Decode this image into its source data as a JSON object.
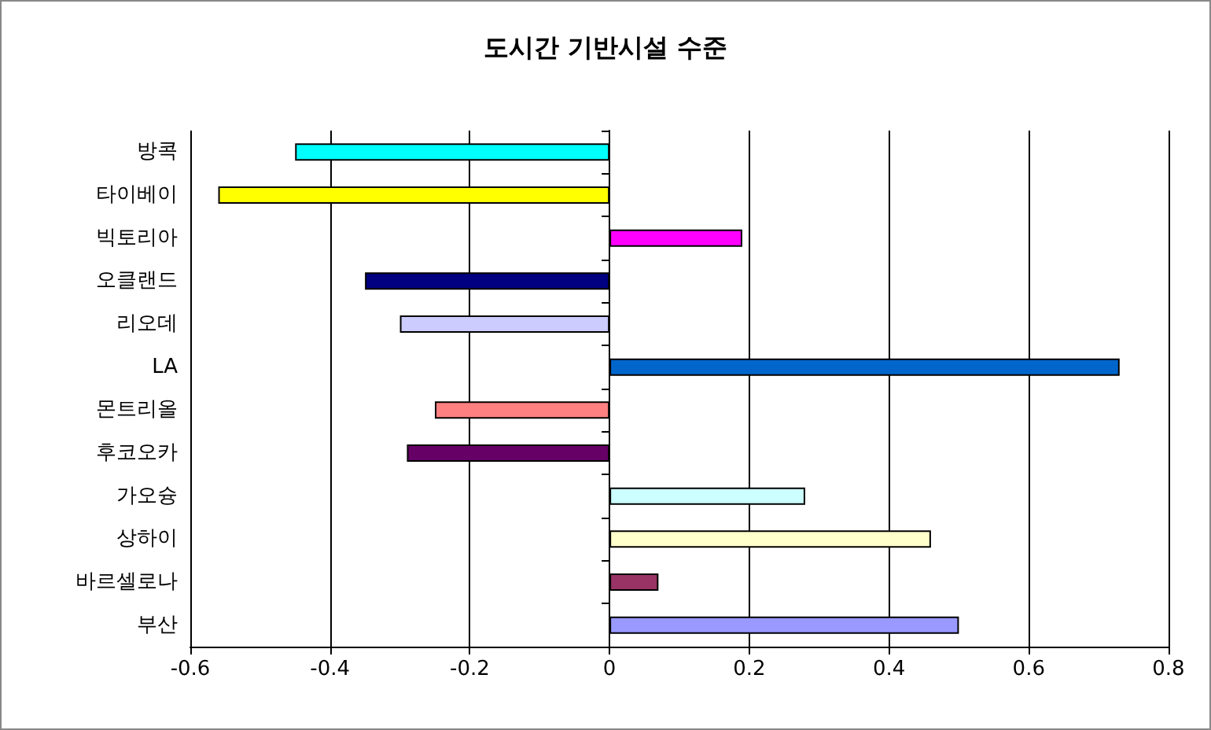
{
  "chart_data": {
    "type": "bar",
    "orientation": "horizontal",
    "title": "도시간 기반시설 수준",
    "categories": [
      "방콕",
      "타이베이",
      "빅토리아",
      "오클랜드",
      "리오데",
      "LA",
      "몬트리올",
      "후코오카",
      "가오슝",
      "상하이",
      "바르셀로나",
      "부산"
    ],
    "values": [
      -0.45,
      -0.56,
      0.19,
      -0.35,
      -0.3,
      0.73,
      -0.25,
      -0.29,
      0.28,
      0.46,
      0.07,
      0.5
    ],
    "colors": [
      "#00ffff",
      "#ffff00",
      "#ff00ff",
      "#000080",
      "#ccccff",
      "#0066cc",
      "#ff8080",
      "#660066",
      "#ccffff",
      "#ffffcc",
      "#993366",
      "#9999ff"
    ],
    "xlim": [
      -0.6,
      0.8
    ],
    "xticks": [
      -0.6,
      -0.4,
      -0.2,
      0,
      0.2,
      0.4,
      0.6,
      0.8
    ],
    "grid": "x"
  }
}
